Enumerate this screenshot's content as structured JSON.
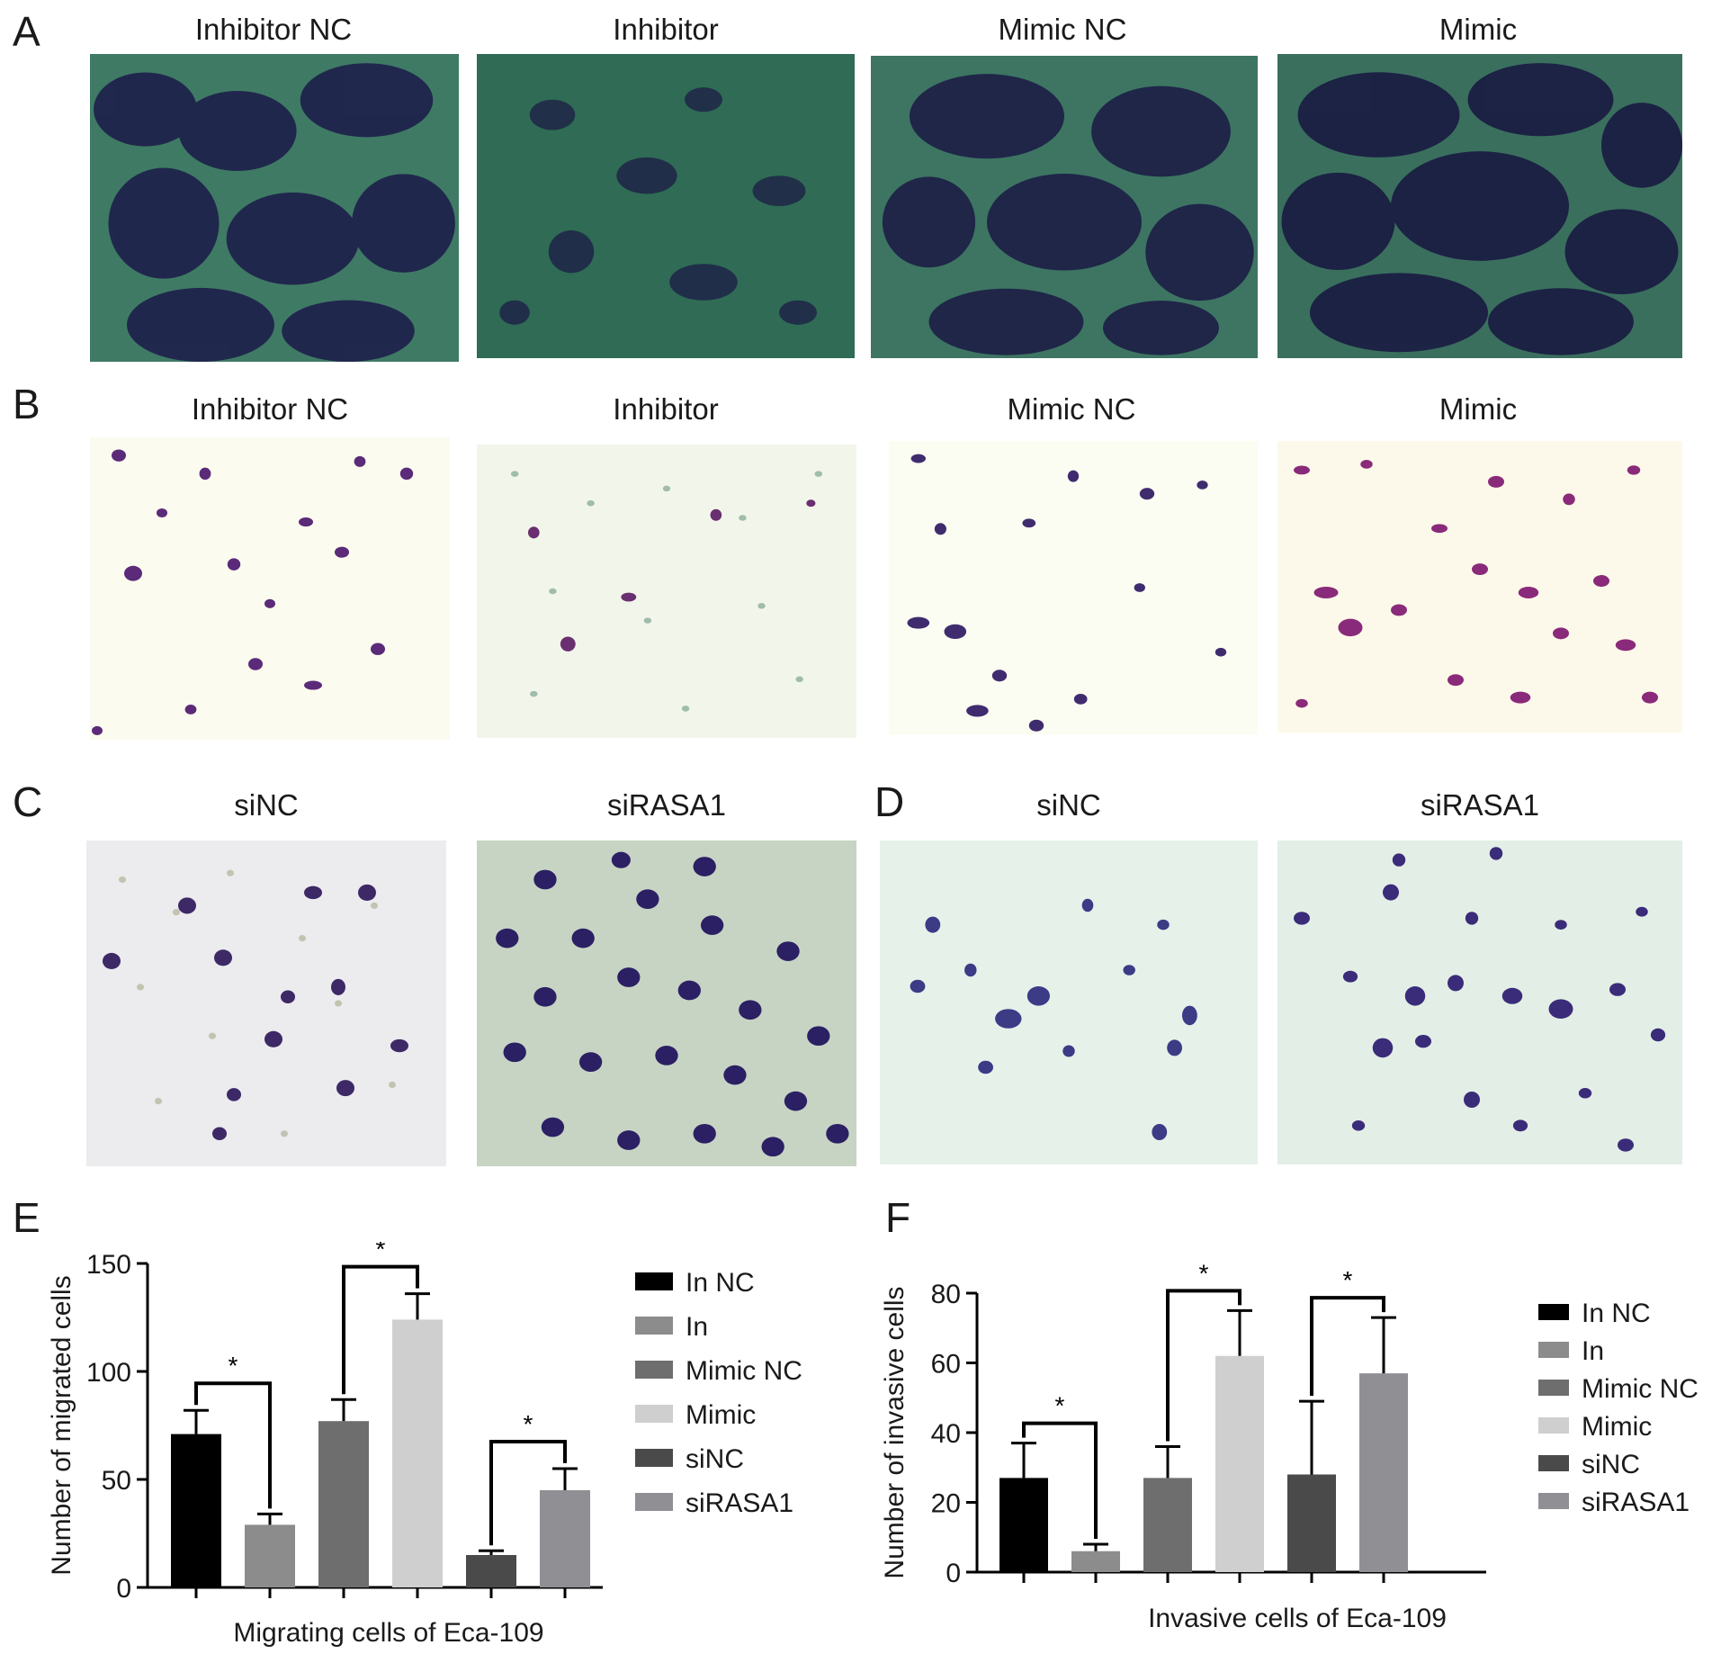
{
  "panels": {
    "A": {
      "letter": "A",
      "titles": [
        "Inhibitor NC",
        "Inhibitor",
        "Mimic NC",
        "Mimic"
      ]
    },
    "B": {
      "letter": "B",
      "titles": [
        "Inhibitor NC",
        "Inhibitor",
        "Mimic NC",
        "Mimic"
      ]
    },
    "C": {
      "letter": "C",
      "titles": [
        "siNC",
        "siRASA1"
      ]
    },
    "D": {
      "letter": "D",
      "titles": [
        "siNC",
        "siRASA1"
      ]
    },
    "E": {
      "letter": "E"
    },
    "F": {
      "letter": "F"
    }
  },
  "colors": {
    "In NC": "#000000",
    "In": "#8c8c8c",
    "Mimic NC": "#6e6e6e",
    "Mimic": "#cfcfcf",
    "siNC": "#4a4a4a",
    "siRASA1": "#8f8f94"
  },
  "chart_data": [
    {
      "type": "bar",
      "panel": "E",
      "xlabel": "Migrating cells of Eca-109",
      "ylabel": "Number of migrated cells",
      "ylim": [
        0,
        150
      ],
      "yticks": [
        0,
        50,
        100,
        150
      ],
      "categories": [
        "In NC",
        "In",
        "Mimic NC",
        "Mimic",
        "siNC",
        "siRASA1"
      ],
      "values": [
        71,
        29,
        77,
        124,
        15,
        45
      ],
      "errors": [
        11,
        5,
        10,
        12,
        2,
        10
      ],
      "significance": [
        {
          "from": 0,
          "to": 1,
          "label": "*"
        },
        {
          "from": 2,
          "to": 3,
          "label": "*"
        },
        {
          "from": 4,
          "to": 5,
          "label": "*"
        }
      ],
      "legend": [
        "In NC",
        "In",
        "Mimic NC",
        "Mimic",
        "siNC",
        "siRASA1"
      ],
      "legend_position": "right"
    },
    {
      "type": "bar",
      "panel": "F",
      "xlabel": "Invasive cells of Eca-109",
      "ylabel": "Number of invasive cells",
      "ylim": [
        0,
        80
      ],
      "yticks": [
        0,
        20,
        40,
        60,
        80
      ],
      "categories": [
        "In NC",
        "In",
        "Mimic NC",
        "Mimic",
        "siNC",
        "siRASA1"
      ],
      "values": [
        27,
        6,
        27,
        62,
        28,
        57
      ],
      "errors": [
        10,
        2,
        9,
        13,
        21,
        16
      ],
      "significance": [
        {
          "from": 0,
          "to": 1,
          "label": "*"
        },
        {
          "from": 2,
          "to": 3,
          "label": "*"
        },
        {
          "from": 4,
          "to": 5,
          "label": "*"
        }
      ],
      "legend": [
        "In NC",
        "In",
        "Mimic NC",
        "Mimic",
        "siNC",
        "siRASA1"
      ],
      "legend_position": "right"
    }
  ]
}
